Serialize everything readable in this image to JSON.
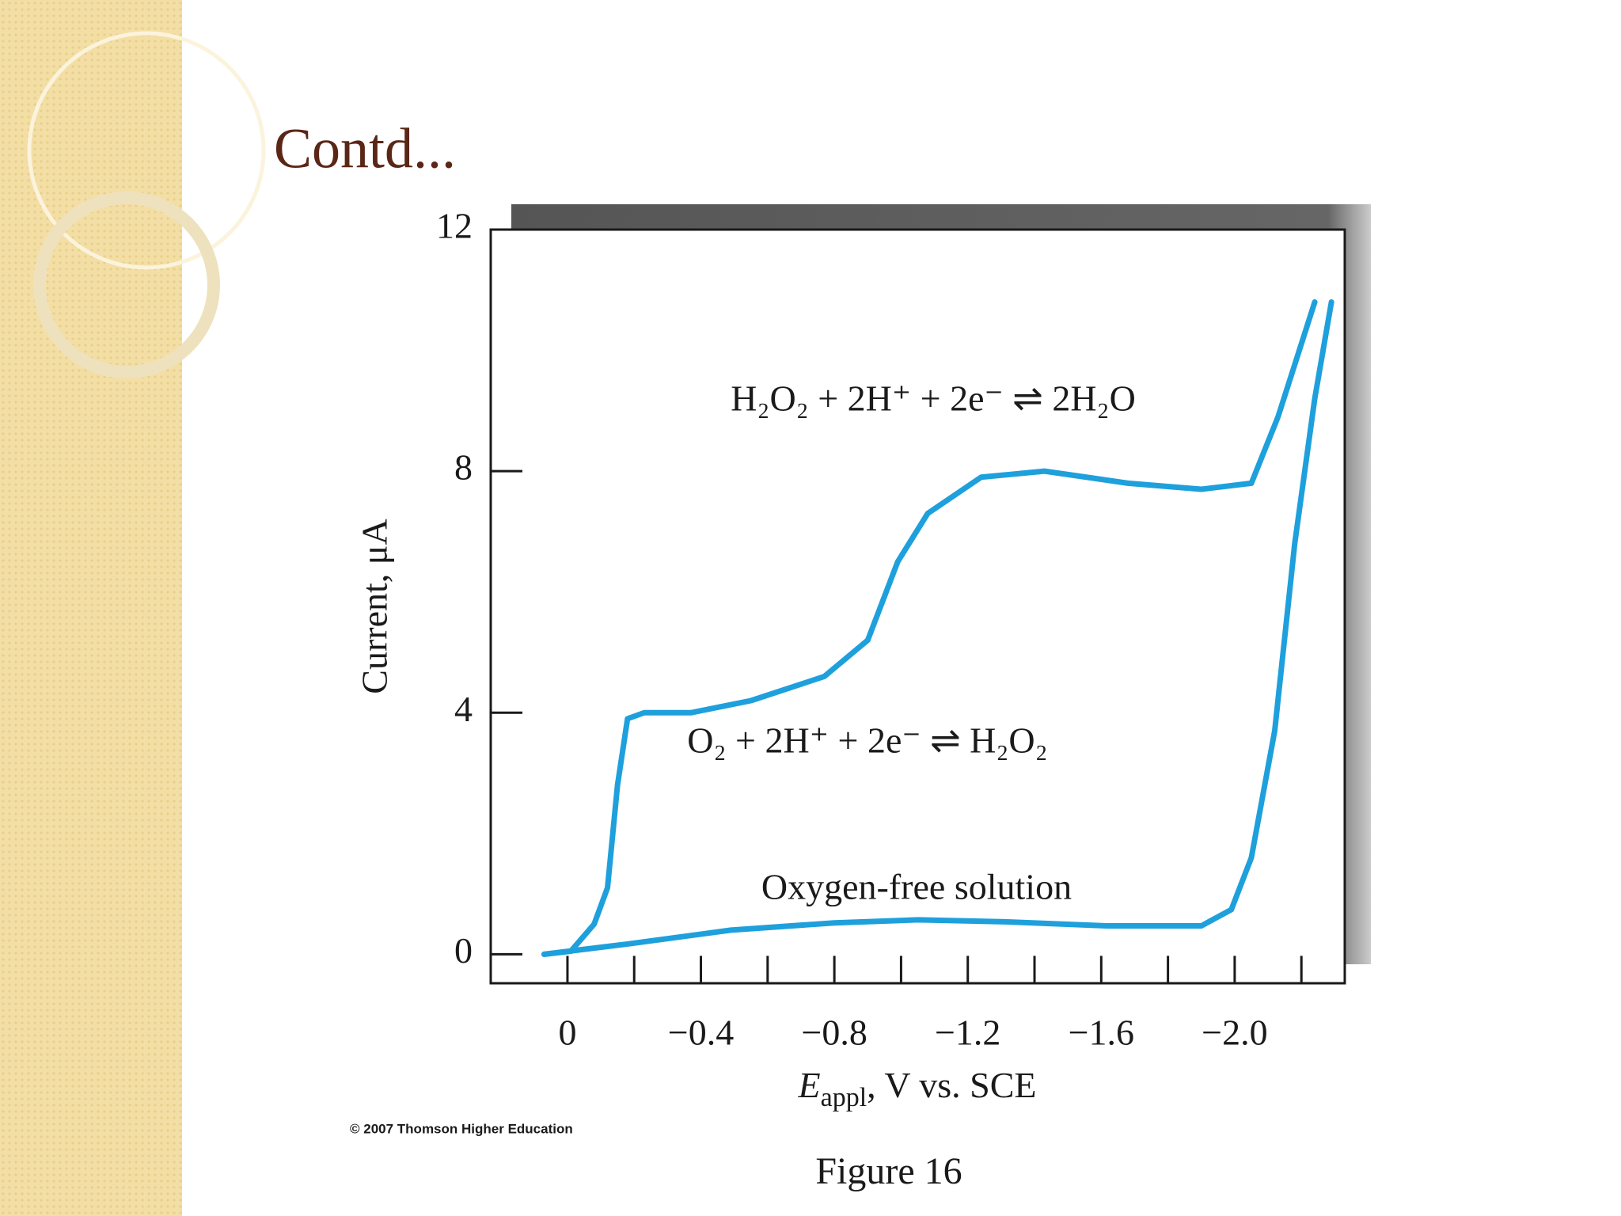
{
  "slide_title": "Contd...",
  "caption": "Figure 16",
  "copyright": "© 2007 Thomson Higher Education",
  "chart_data": {
    "type": "line",
    "ylabel": "Current, μA",
    "xlabel": [
      "E",
      "appl",
      ", V vs. SCE"
    ],
    "annotations": [
      "H₂O₂ + 2H⁺ + 2e⁻ ⇌ 2H₂O",
      "O₂ + 2H⁺ + 2e⁻ ⇌ H₂O₂",
      "Oxygen-free solution"
    ],
    "xlim": [
      0.23,
      -2.33
    ],
    "ylim": [
      -0.48,
      12
    ],
    "xticks": [
      0,
      {
        "value": -0.4,
        "label": "−0.4"
      },
      {
        "value": -0.8,
        "label": "−0.8"
      },
      {
        "value": -1.2,
        "label": "−1.2"
      },
      {
        "value": -1.6,
        "label": "−1.6"
      },
      {
        "value": -2.0,
        "label": "−2.0"
      }
    ],
    "xminor": [
      -0.2,
      -0.6,
      -1.0,
      -1.4,
      -1.8,
      -2.2
    ],
    "yticks": [
      0,
      4,
      8,
      12
    ],
    "series": [
      {
        "color": "#1ea0dc",
        "x": [
          0.07,
          -0.01,
          -0.08,
          -0.12,
          -0.15,
          -0.18,
          -0.23,
          -0.37,
          -0.55,
          -0.77,
          -0.9,
          -0.99,
          -1.08,
          -1.24,
          -1.43,
          -1.68,
          -1.9,
          -2.05,
          -2.13,
          -2.24
        ],
        "values": [
          0,
          0.05,
          0.5,
          1.1,
          2.8,
          3.9,
          4.0,
          4.0,
          4.2,
          4.6,
          5.2,
          6.5,
          7.3,
          7.9,
          8.0,
          7.8,
          7.7,
          7.8,
          8.9,
          10.8
        ]
      },
      {
        "color": "#1ea0dc",
        "x": [
          0.07,
          -0.18,
          -0.49,
          -0.8,
          -1.05,
          -1.3,
          -1.62,
          -1.9,
          -1.99,
          -2.05,
          -2.12,
          -2.18,
          -2.24,
          -2.29
        ],
        "values": [
          0,
          0.17,
          0.4,
          0.52,
          0.57,
          0.54,
          0.47,
          0.47,
          0.74,
          1.6,
          3.7,
          6.8,
          9.2,
          10.8
        ]
      }
    ]
  }
}
